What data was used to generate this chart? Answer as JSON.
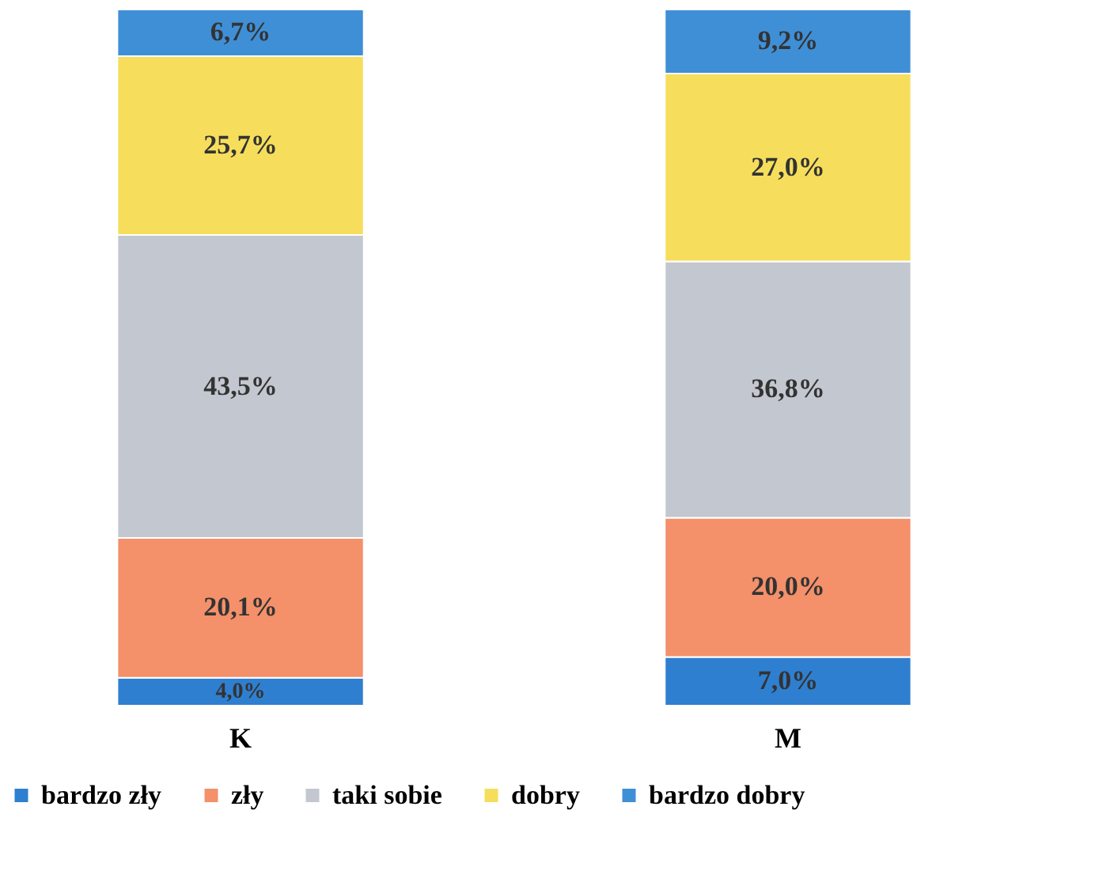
{
  "chart_data": {
    "type": "bar",
    "stacked": true,
    "categories": [
      "K",
      "M"
    ],
    "series": [
      {
        "name": "bardzo zły",
        "color": "#2f7fd0",
        "values": [
          4.0,
          7.0
        ],
        "value_labels": [
          "4,0%",
          "7,0%"
        ]
      },
      {
        "name": "zły",
        "color": "#f4906a",
        "values": [
          20.1,
          20.0
        ],
        "value_labels": [
          "20,1%",
          "20,0%"
        ]
      },
      {
        "name": "taki sobie",
        "color": "#c3c7cf",
        "values": [
          43.5,
          36.8
        ],
        "value_labels": [
          "43,5%",
          "36,8%"
        ]
      },
      {
        "name": "dobry",
        "color": "#f6de5c",
        "values": [
          25.7,
          27.0
        ],
        "value_labels": [
          "25,7%",
          "27,0%"
        ]
      },
      {
        "name": "bardzo dobry",
        "color": "#3f8fd6",
        "values": [
          6.7,
          9.2
        ],
        "value_labels": [
          "6,7%",
          "9,2%"
        ]
      }
    ],
    "legend": "bottom"
  }
}
